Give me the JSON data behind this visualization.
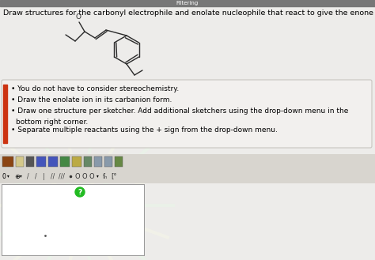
{
  "title_text": "Draw structures for the carbonyl electrophile and enolate nucleophile that react to give the enone below.",
  "bullet_points": [
    "You do not have to consider stereochemistry.",
    "Draw the enolate ion in its carbanion form.",
    "Draw one structure per sketcher. Add additional sketchers using the drop-down menu in the\n    bottom right corner.",
    "Separate multiple reactants using the + sign from the drop-down menu."
  ],
  "bg_color": "#edecea",
  "box_color": "#f2f0ee",
  "box_border": "#c8c5c0",
  "title_fontsize": 6.8,
  "bullet_fontsize": 6.5,
  "toolbar_bg": "#d8d5cf",
  "sketcher_bg": "#ffffff",
  "sketcher_border": "#999999",
  "question_mark_color": "#22bb22",
  "top_bar_color": "#777777",
  "top_bar_text": "Filtering",
  "mol_color": "#2a2a2a",
  "red_tab_color": "#cc3311"
}
